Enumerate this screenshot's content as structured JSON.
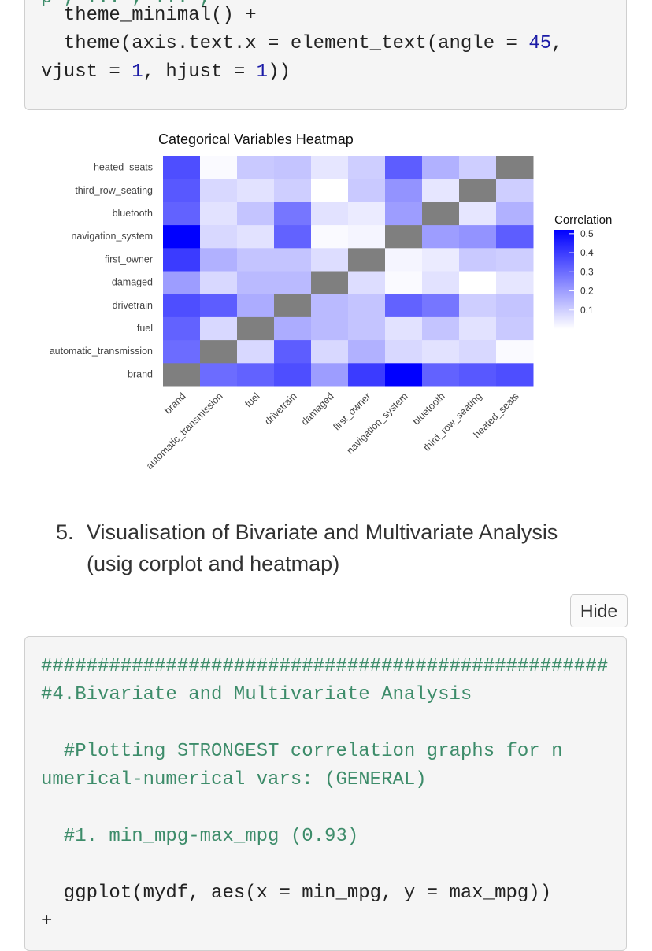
{
  "code_top": {
    "line0": "p , ... , ... ,",
    "line1_a": "theme_minimal() +",
    "line2_a": "theme(axis.text.x = element_text(angle = ",
    "line2_num": "45",
    "line2_b": ",",
    "line3_a": "vjust = ",
    "line3_num1": "1",
    "line3_b": ", hjust = ",
    "line3_num2": "1",
    "line3_c": "))"
  },
  "chart_data": {
    "type": "heatmap",
    "title": "Categorical Variables Heatmap",
    "x_categories": [
      "brand",
      "automatic_transmission",
      "fuel",
      "drivetrain",
      "damaged",
      "first_owner",
      "navigation_system",
      "bluetooth",
      "third_row_seating",
      "heated_seats"
    ],
    "y_categories": [
      "brand",
      "automatic_transmission",
      "fuel",
      "drivetrain",
      "damaged",
      "first_owner",
      "navigation_system",
      "bluetooth",
      "third_row_seating",
      "heated_seats"
    ],
    "values": [
      [
        null,
        0.3,
        0.32,
        0.36,
        0.2,
        0.4,
        0.52,
        0.32,
        0.34,
        0.36
      ],
      [
        0.3,
        null,
        0.08,
        0.33,
        0.08,
        0.16,
        0.08,
        0.06,
        0.08,
        0.01
      ],
      [
        0.32,
        0.08,
        null,
        0.17,
        0.14,
        0.12,
        0.06,
        0.12,
        0.06,
        0.11
      ],
      [
        0.36,
        0.33,
        0.17,
        null,
        0.14,
        0.12,
        0.32,
        0.28,
        0.1,
        0.12
      ],
      [
        0.2,
        0.08,
        0.14,
        0.14,
        null,
        0.07,
        0.01,
        0.06,
        0.0,
        0.05
      ],
      [
        0.4,
        0.16,
        0.12,
        0.12,
        0.07,
        null,
        0.02,
        0.04,
        0.11,
        0.1
      ],
      [
        0.52,
        0.08,
        0.06,
        0.32,
        0.01,
        0.02,
        null,
        0.2,
        0.22,
        0.33
      ],
      [
        0.32,
        0.06,
        0.12,
        0.28,
        0.06,
        0.04,
        0.2,
        null,
        0.05,
        0.16
      ],
      [
        0.34,
        0.08,
        0.06,
        0.1,
        0.0,
        0.11,
        0.22,
        0.05,
        null,
        0.1
      ],
      [
        0.36,
        0.01,
        0.11,
        0.12,
        0.05,
        0.1,
        0.33,
        0.16,
        0.1,
        null
      ]
    ],
    "legend_title": "Correlation",
    "legend_ticks": [
      0.5,
      0.4,
      0.3,
      0.2,
      0.1
    ],
    "legend_placement": "right",
    "colors": {
      "low": "#ffffff",
      "high": "#0000ff",
      "na": "#7f7f7f"
    },
    "value_range": [
      0,
      0.52
    ]
  },
  "section": {
    "number": "5.",
    "title": "Visualisation of Bivariate and Multivariate Analysis (usig corplot and heatmap)"
  },
  "hide_button": {
    "label": "Hide"
  },
  "code_bottom": {
    "line1": "##################################################",
    "line2": "#4.Bivariate and Multivariate Analysis",
    "line3": "  #Plotting STRONGEST correlation graphs for n",
    "line4": "umerical-numerical vars: (GENERAL)",
    "line5": "  #1. min_mpg-max_mpg (0.93)",
    "line6": "  ggplot(mydf, aes(x = min_mpg, y = max_mpg))",
    "line7": "+"
  }
}
